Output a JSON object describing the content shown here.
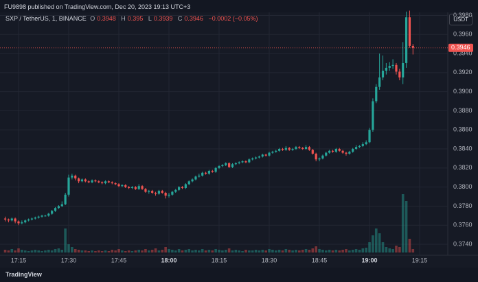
{
  "chart_data": {
    "type": "candlestick",
    "title": "FU9898 published on TradingView.com, Dec 20, 2023 19:13 UTC+3",
    "symbol": "SXP / TetherUS, 1, BINANCE",
    "ohlc_labels": [
      "O",
      "H",
      "L",
      "C"
    ],
    "change": "−0.0002 (−0.05%)",
    "currency": "USDT",
    "footer": "TradingView",
    "up_color": "#26a69a",
    "down_color": "#ef5350",
    "grid": true,
    "ylim": [
      0.37285,
      0.39832
    ],
    "yticks": [
      {
        "value": 0.374,
        "label": "0.3740"
      },
      {
        "value": 0.376,
        "label": "0.3760"
      },
      {
        "value": 0.378,
        "label": "0.3780"
      },
      {
        "value": 0.38,
        "label": "0.3800"
      },
      {
        "value": 0.382,
        "label": "0.3820"
      },
      {
        "value": 0.384,
        "label": "0.3840"
      },
      {
        "value": 0.386,
        "label": "0.3860"
      },
      {
        "value": 0.388,
        "label": "0.3880"
      },
      {
        "value": 0.39,
        "label": "0.3900"
      },
      {
        "value": 0.392,
        "label": "0.3920"
      },
      {
        "value": 0.394,
        "label": "0.3940"
      },
      {
        "value": 0.396,
        "label": "0.3960"
      },
      {
        "value": 0.398,
        "label": "0.3980"
      }
    ],
    "categories": [
      null,
      null,
      null,
      null,
      "17:15",
      null,
      null,
      null,
      null,
      null,
      null,
      null,
      null,
      null,
      null,
      null,
      null,
      null,
      null,
      "17:30",
      null,
      null,
      null,
      null,
      null,
      null,
      null,
      null,
      null,
      null,
      null,
      null,
      null,
      null,
      "17:45",
      null,
      null,
      null,
      null,
      null,
      null,
      null,
      null,
      null,
      null,
      null,
      null,
      null,
      null,
      "18:00",
      null,
      null,
      null,
      null,
      null,
      null,
      null,
      null,
      null,
      null,
      null,
      null,
      null,
      null,
      "18:15",
      null,
      null,
      null,
      null,
      null,
      null,
      null,
      null,
      null,
      null,
      null,
      null,
      null,
      null,
      "18:30",
      null,
      null,
      null,
      null,
      null,
      null,
      null,
      null,
      null,
      null,
      null,
      null,
      null,
      null,
      "18:45",
      null,
      null,
      null,
      null,
      null,
      null,
      null,
      null,
      null,
      null,
      null,
      null,
      null,
      null,
      "19:00",
      null,
      null,
      null,
      null,
      null,
      null,
      null,
      null,
      null,
      null,
      null,
      null,
      null,
      null,
      "19:15"
    ],
    "ohlc": [
      [
        0.3767,
        0.3769,
        0.3764,
        0.3766
      ],
      [
        0.3766,
        0.3767,
        0.3763,
        0.3765
      ],
      [
        0.3765,
        0.3768,
        0.3764,
        0.3767
      ],
      [
        0.3767,
        0.3768,
        0.3762,
        0.3764
      ],
      [
        0.3764,
        0.3765,
        0.376,
        0.3762
      ],
      [
        0.3762,
        0.3765,
        0.3761,
        0.3763
      ],
      [
        0.3763,
        0.3766,
        0.3762,
        0.3765
      ],
      [
        0.3765,
        0.3767,
        0.3764,
        0.3766
      ],
      [
        0.3766,
        0.3768,
        0.3765,
        0.3767
      ],
      [
        0.3767,
        0.3769,
        0.3766,
        0.3768
      ],
      [
        0.3768,
        0.377,
        0.3767,
        0.3769
      ],
      [
        0.3769,
        0.3771,
        0.3768,
        0.377
      ],
      [
        0.377,
        0.3771,
        0.3769,
        0.377
      ],
      [
        0.377,
        0.3773,
        0.3769,
        0.3772
      ],
      [
        0.3772,
        0.3776,
        0.3771,
        0.3775
      ],
      [
        0.3775,
        0.3779,
        0.3774,
        0.3778
      ],
      [
        0.3778,
        0.3781,
        0.3777,
        0.378
      ],
      [
        0.378,
        0.3785,
        0.3779,
        0.3782
      ],
      [
        0.3782,
        0.3794,
        0.3781,
        0.3792
      ],
      [
        0.3792,
        0.3813,
        0.379,
        0.381
      ],
      [
        0.381,
        0.3814,
        0.3808,
        0.3812
      ],
      [
        0.3812,
        0.3813,
        0.3807,
        0.3809
      ],
      [
        0.3809,
        0.381,
        0.3804,
        0.3806
      ],
      [
        0.3806,
        0.3809,
        0.3805,
        0.3808
      ],
      [
        0.3808,
        0.3809,
        0.3805,
        0.3806
      ],
      [
        0.3806,
        0.3807,
        0.3804,
        0.3805
      ],
      [
        0.3805,
        0.3808,
        0.3804,
        0.3807
      ],
      [
        0.3807,
        0.3808,
        0.3805,
        0.3806
      ],
      [
        0.3806,
        0.3807,
        0.3804,
        0.3805
      ],
      [
        0.3805,
        0.3806,
        0.3803,
        0.3804
      ],
      [
        0.3804,
        0.3807,
        0.3803,
        0.3806
      ],
      [
        0.3806,
        0.3807,
        0.3804,
        0.3805
      ],
      [
        0.3805,
        0.3806,
        0.3803,
        0.3804
      ],
      [
        0.3804,
        0.3805,
        0.3802,
        0.3803
      ],
      [
        0.3803,
        0.3804,
        0.38,
        0.3801
      ],
      [
        0.3801,
        0.3803,
        0.38,
        0.3802
      ],
      [
        0.3802,
        0.3803,
        0.3799,
        0.38
      ],
      [
        0.38,
        0.3801,
        0.3798,
        0.3799
      ],
      [
        0.3799,
        0.3801,
        0.3798,
        0.38
      ],
      [
        0.38,
        0.3801,
        0.3797,
        0.3798
      ],
      [
        0.3798,
        0.3803,
        0.3797,
        0.3801
      ],
      [
        0.3801,
        0.3802,
        0.3797,
        0.3798
      ],
      [
        0.3798,
        0.3799,
        0.3794,
        0.3795
      ],
      [
        0.3795,
        0.3797,
        0.3793,
        0.3796
      ],
      [
        0.3796,
        0.3797,
        0.3793,
        0.3794
      ],
      [
        0.3794,
        0.3795,
        0.3791,
        0.3793
      ],
      [
        0.3793,
        0.3797,
        0.3792,
        0.3796
      ],
      [
        0.3796,
        0.3797,
        0.3793,
        0.3794
      ],
      [
        0.3794,
        0.3795,
        0.3788,
        0.3791
      ],
      [
        0.3791,
        0.3794,
        0.3789,
        0.3792
      ],
      [
        0.3792,
        0.3796,
        0.3791,
        0.3795
      ],
      [
        0.3795,
        0.3798,
        0.3794,
        0.3797
      ],
      [
        0.3797,
        0.3801,
        0.3796,
        0.38
      ],
      [
        0.38,
        0.3801,
        0.3798,
        0.3799
      ],
      [
        0.3799,
        0.3804,
        0.3798,
        0.3803
      ],
      [
        0.3803,
        0.3807,
        0.3802,
        0.3806
      ],
      [
        0.3806,
        0.3809,
        0.3805,
        0.3808
      ],
      [
        0.3808,
        0.3812,
        0.3807,
        0.3811
      ],
      [
        0.3811,
        0.3814,
        0.381,
        0.3812
      ],
      [
        0.3812,
        0.3816,
        0.3811,
        0.3815
      ],
      [
        0.3815,
        0.3816,
        0.3813,
        0.3814
      ],
      [
        0.3814,
        0.3818,
        0.3813,
        0.3817
      ],
      [
        0.3817,
        0.3818,
        0.3815,
        0.3816
      ],
      [
        0.3816,
        0.3821,
        0.3815,
        0.382
      ],
      [
        0.382,
        0.3823,
        0.3819,
        0.3822
      ],
      [
        0.3822,
        0.3824,
        0.3821,
        0.3823
      ],
      [
        0.3823,
        0.3826,
        0.3822,
        0.3825
      ],
      [
        0.3825,
        0.3826,
        0.382,
        0.3821
      ],
      [
        0.3821,
        0.3825,
        0.382,
        0.3824
      ],
      [
        0.3824,
        0.3826,
        0.3823,
        0.3825
      ],
      [
        0.3825,
        0.3827,
        0.3824,
        0.3826
      ],
      [
        0.3826,
        0.3828,
        0.3825,
        0.3827
      ],
      [
        0.3827,
        0.3828,
        0.3825,
        0.3826
      ],
      [
        0.3826,
        0.383,
        0.3825,
        0.3829
      ],
      [
        0.3829,
        0.3831,
        0.3828,
        0.383
      ],
      [
        0.383,
        0.3832,
        0.3829,
        0.3831
      ],
      [
        0.3831,
        0.3833,
        0.383,
        0.3832
      ],
      [
        0.3832,
        0.3835,
        0.3831,
        0.3834
      ],
      [
        0.3834,
        0.3835,
        0.3832,
        0.3833
      ],
      [
        0.3833,
        0.3837,
        0.3832,
        0.3836
      ],
      [
        0.3836,
        0.3838,
        0.3835,
        0.3837
      ],
      [
        0.3837,
        0.3839,
        0.3836,
        0.3838
      ],
      [
        0.3838,
        0.3841,
        0.3837,
        0.384
      ],
      [
        0.384,
        0.3841,
        0.3838,
        0.3839
      ],
      [
        0.3839,
        0.3843,
        0.3838,
        0.3841
      ],
      [
        0.3841,
        0.3842,
        0.3838,
        0.3839
      ],
      [
        0.3839,
        0.3841,
        0.3838,
        0.384
      ],
      [
        0.384,
        0.3843,
        0.3839,
        0.3842
      ],
      [
        0.3842,
        0.3843,
        0.384,
        0.3841
      ],
      [
        0.3841,
        0.3842,
        0.3839,
        0.384
      ],
      [
        0.384,
        0.3844,
        0.3839,
        0.3842
      ],
      [
        0.3842,
        0.3843,
        0.3838,
        0.3839
      ],
      [
        0.3839,
        0.384,
        0.3834,
        0.3835
      ],
      [
        0.3835,
        0.3836,
        0.3827,
        0.3829
      ],
      [
        0.3829,
        0.3831,
        0.3827,
        0.383
      ],
      [
        0.383,
        0.3834,
        0.3829,
        0.3833
      ],
      [
        0.3833,
        0.3837,
        0.3832,
        0.3836
      ],
      [
        0.3836,
        0.3839,
        0.3835,
        0.3838
      ],
      [
        0.3838,
        0.3839,
        0.3836,
        0.3837
      ],
      [
        0.3837,
        0.3841,
        0.3836,
        0.384
      ],
      [
        0.384,
        0.3841,
        0.3837,
        0.3838
      ],
      [
        0.3838,
        0.3839,
        0.3835,
        0.3836
      ],
      [
        0.3836,
        0.3837,
        0.3833,
        0.3835
      ],
      [
        0.3835,
        0.3838,
        0.3834,
        0.3837
      ],
      [
        0.3837,
        0.3841,
        0.3836,
        0.384
      ],
      [
        0.384,
        0.3844,
        0.3839,
        0.3842
      ],
      [
        0.3842,
        0.3844,
        0.3841,
        0.3843
      ],
      [
        0.3843,
        0.3847,
        0.3842,
        0.3845
      ],
      [
        0.3845,
        0.3849,
        0.3844,
        0.3847
      ],
      [
        0.3847,
        0.3862,
        0.3846,
        0.386
      ],
      [
        0.386,
        0.3893,
        0.3858,
        0.389
      ],
      [
        0.389,
        0.3908,
        0.3888,
        0.3905
      ],
      [
        0.3905,
        0.394,
        0.3902,
        0.3915
      ],
      [
        0.3915,
        0.3938,
        0.3912,
        0.3922
      ],
      [
        0.3922,
        0.393,
        0.3918,
        0.3925
      ],
      [
        0.3925,
        0.3931,
        0.3922,
        0.3927
      ],
      [
        0.3927,
        0.3934,
        0.3924,
        0.3928
      ],
      [
        0.3928,
        0.393,
        0.3918,
        0.3921
      ],
      [
        0.3921,
        0.3924,
        0.3912,
        0.3915
      ],
      [
        0.3915,
        0.3952,
        0.3908,
        0.393
      ],
      [
        0.393,
        0.3984,
        0.3925,
        0.3978
      ],
      [
        0.3978,
        0.3985,
        0.3946,
        0.3948
      ],
      [
        0.3948,
        0.395,
        0.3939,
        0.3946
      ],
      null,
      null
    ],
    "volume": [
      4,
      3,
      5,
      3,
      6,
      4,
      3,
      2,
      3,
      4,
      3,
      2,
      3,
      4,
      3,
      5,
      6,
      4,
      35,
      12,
      8,
      5,
      4,
      3,
      3,
      2,
      3,
      2,
      3,
      2,
      3,
      2,
      4,
      3,
      5,
      3,
      2,
      3,
      2,
      3,
      4,
      3,
      5,
      3,
      4,
      6,
      3,
      4,
      8,
      5,
      4,
      3,
      5,
      3,
      4,
      5,
      3,
      4,
      3,
      5,
      3,
      4,
      3,
      5,
      4,
      3,
      4,
      6,
      3,
      4,
      3,
      2,
      4,
      3,
      3,
      4,
      3,
      4,
      3,
      5,
      4,
      3,
      4,
      3,
      5,
      4,
      3,
      4,
      3,
      4,
      5,
      4,
      6,
      9,
      5,
      4,
      3,
      4,
      3,
      4,
      3,
      4,
      5,
      3,
      4,
      5,
      4,
      6,
      7,
      15,
      25,
      35,
      28,
      15,
      8,
      6,
      5,
      10,
      8,
      85,
      75,
      20,
      5,
      null,
      null
    ]
  }
}
